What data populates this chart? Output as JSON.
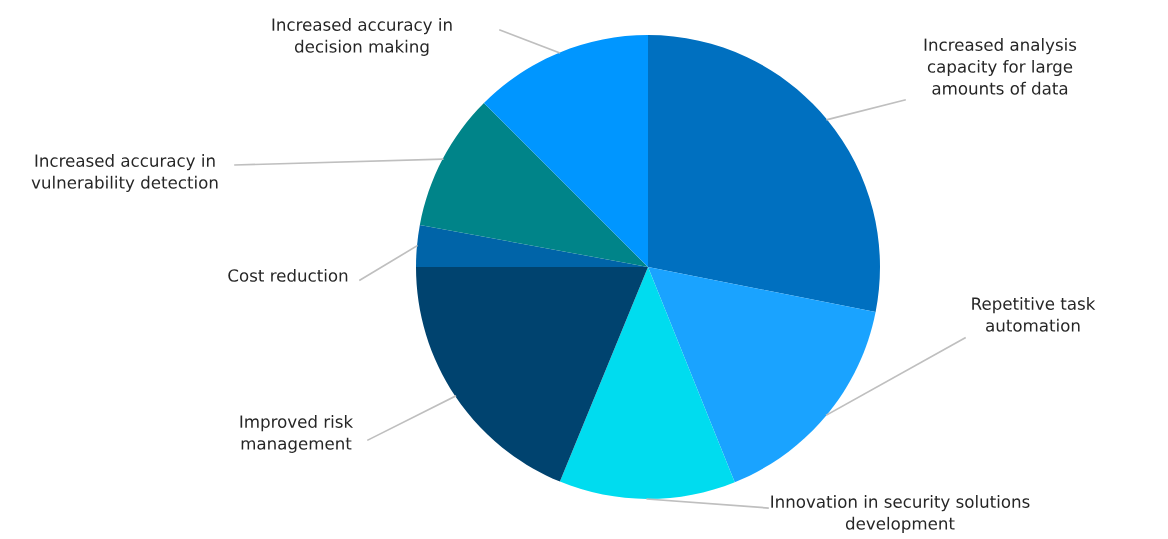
{
  "chart_data": {
    "type": "pie",
    "categories": [
      "Increased analysis\ncapacity for large\namounts of data",
      "Repetitive task\nautomation",
      "Innovation in security solutions\ndevelopment",
      "Improved risk\nmanagement",
      "Cost reduction",
      "Increased accuracy in\nvulnerability detection",
      "Increased accuracy in\ndecision making"
    ],
    "values": [
      28.1,
      15.8,
      12.3,
      18.8,
      2.9,
      9.6,
      12.5
    ],
    "colors": [
      "#0070c0",
      "#1aa3ff",
      "#00dcef",
      "#00436f",
      "#0064a8",
      "#008489",
      "#0096ff"
    ]
  }
}
